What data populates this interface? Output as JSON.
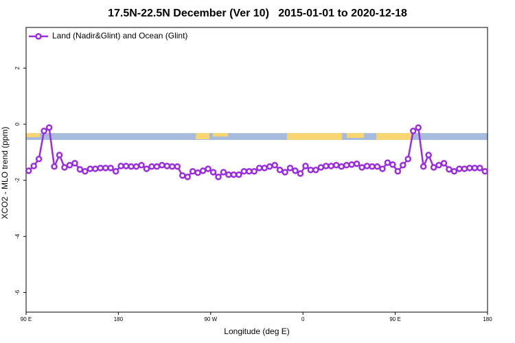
{
  "chart_data": {
    "type": "line",
    "title": "17.5N-22.5N December (Ver 10)   2015-01-01 to 2020-12-18",
    "x_label": "Longitude (deg E)",
    "y_label": "XCO2 - MLO trend (ppm)",
    "xlim": [
      90,
      540
    ],
    "ylim": [
      -6.7,
      3.45
    ],
    "xticks": [
      {
        "value": 90,
        "label": "90 E"
      },
      {
        "value": 180,
        "label": "180"
      },
      {
        "value": 270,
        "label": "90 W"
      },
      {
        "value": 360,
        "label": "0"
      },
      {
        "value": 450,
        "label": "90 E"
      },
      {
        "value": 540,
        "label": "180"
      }
    ],
    "yticks": [
      -6,
      -4,
      -2,
      0,
      2
    ],
    "legend": "top-left",
    "x": [
      92.5,
      97.5,
      102.5,
      107.5,
      112.5,
      117.5,
      122.5,
      127.5,
      132.5,
      137.5,
      142.5,
      147.5,
      152.5,
      157.5,
      162.5,
      167.5,
      172.5,
      177.5,
      182.5,
      187.5,
      192.5,
      197.5,
      202.5,
      207.5,
      212.5,
      217.5,
      222.5,
      227.5,
      232.5,
      237.5,
      242.5,
      247.5,
      252.5,
      257.5,
      262.5,
      267.5,
      272.5,
      277.5,
      282.5,
      287.5,
      292.5,
      297.5,
      302.5,
      307.5,
      312.5,
      317.5,
      322.5,
      327.5,
      332.5,
      337.5,
      342.5,
      347.5,
      352.5,
      357.5,
      362.5,
      367.5,
      372.5,
      377.5,
      382.5,
      387.5,
      392.5,
      397.5,
      402.5,
      407.5,
      412.5,
      417.5,
      422.5,
      427.5,
      432.5,
      437.5,
      442.5,
      447.5,
      452.5,
      457.5,
      462.5,
      467.5,
      472.5,
      477.5,
      482.5,
      487.5,
      492.5,
      497.5,
      502.5,
      507.5,
      512.5,
      517.5,
      522.5,
      527.5,
      532.5,
      537.5
    ],
    "series": [
      {
        "name": "Land (Nadir&Glint) and Ocean (Glint)",
        "color": "#9a2be2",
        "values": [
          -1.66,
          -1.49,
          -1.24,
          -0.24,
          -0.12,
          -1.51,
          -1.1,
          -1.54,
          -1.46,
          -1.39,
          -1.61,
          -1.68,
          -1.59,
          -1.59,
          -1.56,
          -1.56,
          -1.56,
          -1.68,
          -1.49,
          -1.49,
          -1.51,
          -1.51,
          -1.46,
          -1.59,
          -1.51,
          -1.51,
          -1.46,
          -1.49,
          -1.51,
          -1.51,
          -1.83,
          -1.88,
          -1.68,
          -1.73,
          -1.66,
          -1.59,
          -1.71,
          -1.88,
          -1.71,
          -1.8,
          -1.8,
          -1.8,
          -1.68,
          -1.68,
          -1.68,
          -1.56,
          -1.56,
          -1.51,
          -1.46,
          -1.63,
          -1.71,
          -1.56,
          -1.66,
          -1.76,
          -1.49,
          -1.63,
          -1.63,
          -1.54,
          -1.49,
          -1.49,
          -1.46,
          -1.51,
          -1.46,
          -1.44,
          -1.41,
          -1.54,
          -1.49,
          -1.51,
          -1.51,
          -1.59,
          -1.37,
          -1.44,
          -1.68,
          -1.46,
          -1.24,
          -0.24,
          -0.12,
          -1.51,
          -1.1,
          -1.54,
          -1.46,
          -1.39,
          -1.61,
          -1.68,
          -1.59,
          -1.59,
          -1.56,
          -1.56,
          -1.56,
          -1.68
        ]
      }
    ]
  }
}
